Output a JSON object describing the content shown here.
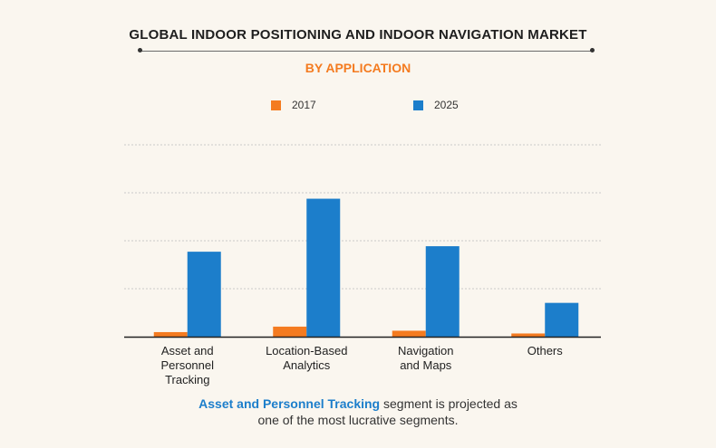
{
  "chart_data": {
    "type": "bar",
    "title": "GLOBAL INDOOR POSITIONING AND INDOOR NAVIGATION MARKET",
    "subtitle": "BY APPLICATION",
    "categories": [
      "Asset and Personnel Tracking",
      "Location-Based Analytics",
      "Navigation and Maps",
      "Others"
    ],
    "category_lines": [
      [
        "Asset and",
        "Personnel",
        "Tracking"
      ],
      [
        "Location-Based",
        "Analytics"
      ],
      [
        "Navigation",
        "and Maps"
      ],
      [
        "Others"
      ]
    ],
    "series": [
      {
        "name": "2017",
        "color": "#f47b20",
        "values": [
          1.0,
          2.2,
          1.3,
          0.7
        ]
      },
      {
        "name": "2025",
        "color": "#1c7ecb",
        "values": [
          18.6,
          30.2,
          19.8,
          7.4
        ]
      }
    ],
    "ylim": [
      0,
      42
    ],
    "grid": true,
    "legend_position": "top-center"
  },
  "caption": {
    "highlight": "Asset and Personnel Tracking",
    "line1_rest": " segment is projected as",
    "line2": "one of the most lucrative segments."
  }
}
